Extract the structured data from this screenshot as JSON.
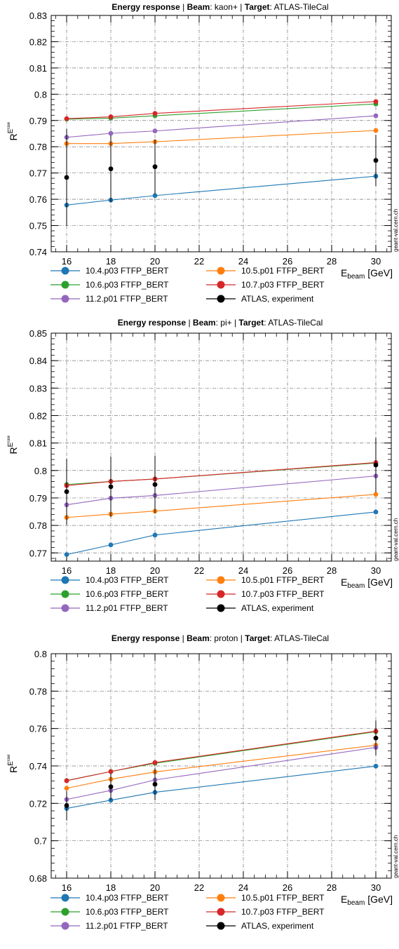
{
  "watermark": "geant-val.cern.ch",
  "chart_data": [
    {
      "type": "line",
      "title": {
        "b1": "Energy response",
        "sep1": " | ",
        "b2": "Beam",
        "v2": ": kaon+",
        "sep2": " | ",
        "b3": "Target",
        "v3": ": ATLAS-TileCal"
      },
      "ylabel": {
        "main": "R",
        "sup": "E",
        "supsup": "raw"
      },
      "xlabel": {
        "main": "E",
        "sub": "beam",
        "unit": " [GeV]"
      },
      "x": [
        16,
        18,
        20,
        30
      ],
      "xlim": [
        15.3,
        30.7
      ],
      "ylim": [
        0.74,
        0.83
      ],
      "xticks": [
        "16",
        "18",
        "20",
        "22",
        "24",
        "26",
        "28",
        "30"
      ],
      "yticks": [
        "0.74",
        "0.75",
        "0.76",
        "0.77",
        "0.78",
        "0.79",
        "0.8",
        "0.81",
        "0.82",
        "0.83"
      ],
      "grid": true,
      "legend_position": "bottom",
      "series": [
        {
          "name": "10.4.p03 FTFP_BERT",
          "color": "#1f77b4",
          "values": [
            0.7578,
            0.7597,
            0.7614,
            0.7688
          ]
        },
        {
          "name": "10.5.p01 FTFP_BERT",
          "color": "#ff7f0e",
          "values": [
            0.7812,
            0.7812,
            0.7819,
            0.7862
          ]
        },
        {
          "name": "10.6.p03 FTFP_BERT",
          "color": "#2ca02c",
          "values": [
            0.7905,
            0.7909,
            0.7918,
            0.7963
          ]
        },
        {
          "name": "10.7.p03 FTFP_BERT",
          "color": "#d62728",
          "values": [
            0.7907,
            0.7914,
            0.7927,
            0.7972
          ]
        },
        {
          "name": "11.2.p01 FTFP_BERT",
          "color": "#9467bd",
          "values": [
            0.7836,
            0.7851,
            0.786,
            0.7918
          ]
        },
        {
          "name": "ATLAS, experiment",
          "color": "#000000",
          "values": [
            0.7683,
            0.7716,
            0.7724,
            0.7748
          ],
          "errors": [
            0.0184,
            0.0127,
            0.0104,
            0.0097
          ]
        }
      ]
    },
    {
      "type": "line",
      "title": {
        "b1": "Energy response",
        "sep1": " | ",
        "b2": "Beam",
        "v2": ": pi+",
        "sep2": " | ",
        "b3": "Target",
        "v3": ": ATLAS-TileCal"
      },
      "ylabel": {
        "main": "R",
        "sup": "E",
        "supsup": "raw"
      },
      "xlabel": {
        "main": "E",
        "sub": "beam",
        "unit": " [GeV]"
      },
      "x": [
        16,
        18,
        20,
        30
      ],
      "xlim": [
        15.3,
        30.7
      ],
      "ylim": [
        0.767,
        0.85
      ],
      "xticks": [
        "16",
        "18",
        "20",
        "22",
        "24",
        "26",
        "28",
        "30"
      ],
      "yticks": [
        "0.77",
        "0.78",
        "0.79",
        "0.8",
        "0.81",
        "0.82",
        "0.83",
        "0.84",
        "0.85"
      ],
      "grid": true,
      "legend_position": "bottom",
      "series": [
        {
          "name": "10.4.p03 FTFP_BERT",
          "color": "#1f77b4",
          "values": [
            0.7694,
            0.7729,
            0.7765,
            0.7849
          ]
        },
        {
          "name": "10.5.p01 FTFP_BERT",
          "color": "#ff7f0e",
          "values": [
            0.7829,
            0.7841,
            0.7852,
            0.7913
          ]
        },
        {
          "name": "10.6.p03 FTFP_BERT",
          "color": "#2ca02c",
          "values": [
            0.7949,
            0.796,
            0.7969,
            0.8027
          ]
        },
        {
          "name": "10.7.p03 FTFP_BERT",
          "color": "#d62728",
          "values": [
            0.7945,
            0.796,
            0.7969,
            0.8029
          ]
        },
        {
          "name": "11.2.p01 FTFP_BERT",
          "color": "#9467bd",
          "values": [
            0.7875,
            0.7899,
            0.7909,
            0.798
          ]
        },
        {
          "name": "ATLAS, experiment",
          "color": "#000000",
          "values": [
            0.7923,
            0.7941,
            0.7949,
            0.802
          ],
          "errors": [
            0.012,
            0.011,
            0.0104,
            0.01
          ]
        }
      ]
    },
    {
      "type": "line",
      "title": {
        "b1": "Energy response",
        "sep1": "  | ",
        "b2": "Beam",
        "v2": ": proton",
        "sep2": " | ",
        "b3": "Target",
        "v3": ": ATLAS-TileCal"
      },
      "ylabel": {
        "main": "R",
        "sup": "E",
        "supsup": "raw"
      },
      "xlabel": {
        "main": "E",
        "sub": "beam",
        "unit": " [GeV]"
      },
      "x": [
        16,
        18,
        20,
        30
      ],
      "xlim": [
        15.3,
        30.7
      ],
      "ylim": [
        0.68,
        0.8
      ],
      "xticks": [
        "16",
        "18",
        "20",
        "22",
        "24",
        "26",
        "28",
        "30"
      ],
      "yticks": [
        "0.68",
        "0.7",
        "0.72",
        "0.74",
        "0.76",
        "0.78",
        "0.8"
      ],
      "grid": true,
      "legend_position": "bottom",
      "series": [
        {
          "name": "10.4.p03 FTFP_BERT",
          "color": "#1f77b4",
          "values": [
            0.7173,
            0.7217,
            0.7259,
            0.7399
          ]
        },
        {
          "name": "10.5.p01 FTFP_BERT",
          "color": "#ff7f0e",
          "values": [
            0.7281,
            0.7329,
            0.7368,
            0.7511
          ]
        },
        {
          "name": "10.6.p03 FTFP_BERT",
          "color": "#2ca02c",
          "values": [
            0.7322,
            0.737,
            0.7414,
            0.7583
          ]
        },
        {
          "name": "10.7.p03 FTFP_BERT",
          "color": "#d62728",
          "values": [
            0.7321,
            0.737,
            0.7418,
            0.7586
          ]
        },
        {
          "name": "11.2.p01 FTFP_BERT",
          "color": "#9467bd",
          "values": [
            0.7221,
            0.7269,
            0.7325,
            0.7499
          ]
        },
        {
          "name": "ATLAS, experiment",
          "color": "#000000",
          "values": [
            0.7188,
            0.7289,
            0.7302,
            0.7549
          ],
          "errors": [
            0.0079,
            0.0071,
            0.0086,
            0.0094
          ]
        }
      ]
    }
  ]
}
